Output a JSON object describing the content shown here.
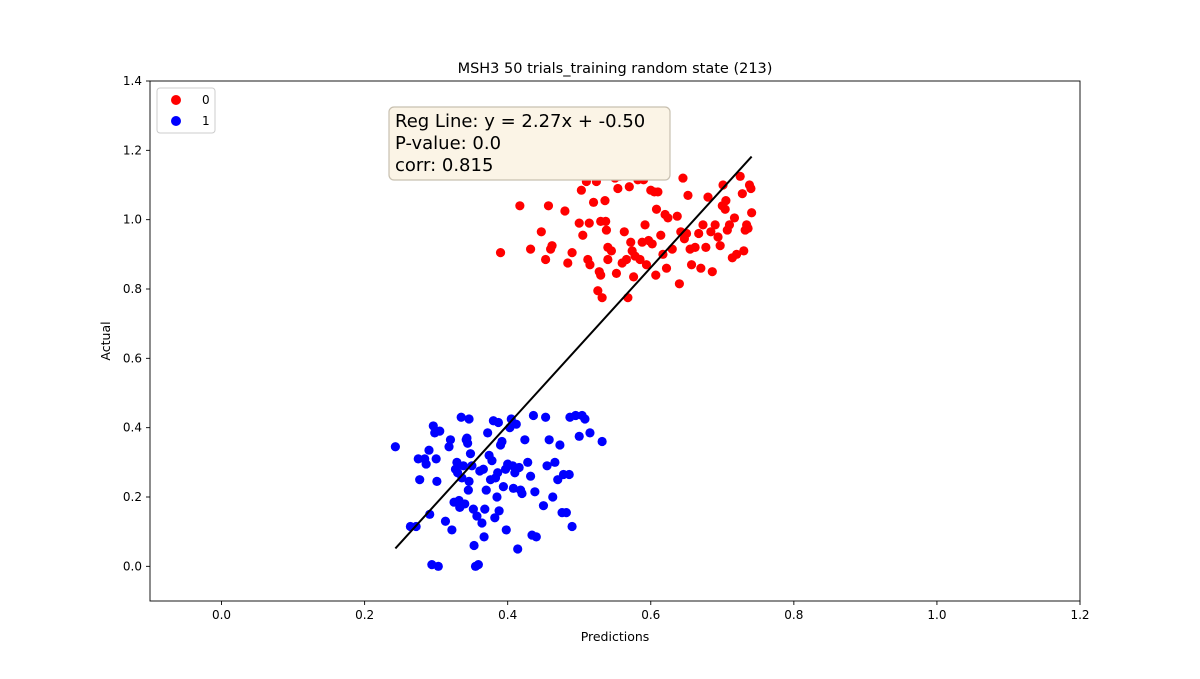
{
  "chart_data": {
    "type": "scatter",
    "title": "MSH3 50 trials_training random state (213)",
    "xlabel": "Predictions",
    "ylabel": "Actual",
    "xlim": [
      -0.1,
      1.2
    ],
    "ylim": [
      -0.1,
      1.4
    ],
    "xticks": [
      "0.0",
      "0.2",
      "0.4",
      "0.6",
      "0.8",
      "1.0",
      "1.2"
    ],
    "xtick_values": [
      0.0,
      0.2,
      0.4,
      0.6,
      0.8,
      1.0,
      1.2
    ],
    "yticks": [
      "0.0",
      "0.2",
      "0.4",
      "0.6",
      "0.8",
      "1.0",
      "1.2",
      "1.4"
    ],
    "ytick_values": [
      0.0,
      0.2,
      0.4,
      0.6,
      0.8,
      1.0,
      1.2,
      1.4
    ],
    "grid": false,
    "legend_position": "top-left",
    "annotation": [
      "Reg Line: y = 2.27x + -0.50",
      "P-value: 0.0",
      "corr: 0.815"
    ],
    "regression_line": {
      "slope": 2.27,
      "intercept": -0.5,
      "x_range": [
        0.243,
        0.741
      ],
      "color": "#000000"
    },
    "series": [
      {
        "name": "0",
        "color": "#ff0000",
        "points": [
          [
            0.39,
            0.905
          ],
          [
            0.417,
            1.04
          ],
          [
            0.432,
            0.915
          ],
          [
            0.447,
            0.965
          ],
          [
            0.453,
            0.885
          ],
          [
            0.457,
            1.04
          ],
          [
            0.46,
            0.915
          ],
          [
            0.462,
            0.925
          ],
          [
            0.48,
            1.025
          ],
          [
            0.484,
            0.875
          ],
          [
            0.49,
            0.905
          ],
          [
            0.5,
            0.99
          ],
          [
            0.503,
            1.085
          ],
          [
            0.505,
            0.955
          ],
          [
            0.51,
            1.11
          ],
          [
            0.512,
            0.885
          ],
          [
            0.514,
            0.99
          ],
          [
            0.515,
            0.87
          ],
          [
            0.52,
            1.05
          ],
          [
            0.524,
            1.11
          ],
          [
            0.526,
            0.795
          ],
          [
            0.528,
            0.85
          ],
          [
            0.53,
            0.84
          ],
          [
            0.532,
            0.775
          ],
          [
            0.53,
            0.995
          ],
          [
            0.536,
            1.055
          ],
          [
            0.537,
            0.995
          ],
          [
            0.538,
            0.97
          ],
          [
            0.54,
            0.92
          ],
          [
            0.54,
            0.885
          ],
          [
            0.545,
            0.91
          ],
          [
            0.55,
            1.12
          ],
          [
            0.552,
            0.845
          ],
          [
            0.554,
            1.09
          ],
          [
            0.557,
            1.125
          ],
          [
            0.56,
            0.875
          ],
          [
            0.563,
            0.965
          ],
          [
            0.566,
            0.885
          ],
          [
            0.568,
            0.775
          ],
          [
            0.57,
            1.095
          ],
          [
            0.572,
            0.935
          ],
          [
            0.574,
            0.91
          ],
          [
            0.576,
            0.835
          ],
          [
            0.578,
            0.895
          ],
          [
            0.582,
            1.115
          ],
          [
            0.585,
            0.885
          ],
          [
            0.588,
            0.935
          ],
          [
            0.59,
            1.115
          ],
          [
            0.592,
            0.985
          ],
          [
            0.594,
            0.87
          ],
          [
            0.597,
            0.94
          ],
          [
            0.6,
            1.085
          ],
          [
            0.602,
            0.93
          ],
          [
            0.605,
            1.08
          ],
          [
            0.607,
            0.84
          ],
          [
            0.608,
            1.03
          ],
          [
            0.61,
            1.08
          ],
          [
            0.614,
            0.955
          ],
          [
            0.617,
            0.9
          ],
          [
            0.62,
            1.015
          ],
          [
            0.622,
            0.86
          ],
          [
            0.624,
            1.005
          ],
          [
            0.63,
            0.915
          ],
          [
            0.637,
            1.01
          ],
          [
            0.64,
            0.815
          ],
          [
            0.642,
            0.965
          ],
          [
            0.645,
            1.12
          ],
          [
            0.647,
            0.945
          ],
          [
            0.65,
            0.96
          ],
          [
            0.652,
            1.07
          ],
          [
            0.655,
            0.915
          ],
          [
            0.657,
            0.87
          ],
          [
            0.662,
            0.92
          ],
          [
            0.667,
            0.96
          ],
          [
            0.67,
            0.86
          ],
          [
            0.673,
            0.985
          ],
          [
            0.677,
            0.92
          ],
          [
            0.68,
            1.065
          ],
          [
            0.684,
            0.965
          ],
          [
            0.686,
            0.85
          ],
          [
            0.69,
            0.985
          ],
          [
            0.694,
            0.95
          ],
          [
            0.697,
            0.925
          ],
          [
            0.7,
            1.04
          ],
          [
            0.701,
            1.1
          ],
          [
            0.704,
            1.03
          ],
          [
            0.705,
            1.055
          ],
          [
            0.707,
            0.97
          ],
          [
            0.71,
            0.985
          ],
          [
            0.714,
            0.89
          ],
          [
            0.717,
            1.005
          ],
          [
            0.72,
            0.9
          ],
          [
            0.725,
            1.125
          ],
          [
            0.728,
            1.075
          ],
          [
            0.73,
            0.91
          ],
          [
            0.732,
            0.97
          ],
          [
            0.734,
            0.985
          ],
          [
            0.736,
            0.975
          ],
          [
            0.738,
            1.1
          ],
          [
            0.74,
            1.09
          ],
          [
            0.741,
            1.02
          ]
        ]
      },
      {
        "name": "1",
        "color": "#0000ff",
        "points": [
          [
            0.243,
            0.345
          ],
          [
            0.264,
            0.115
          ],
          [
            0.272,
            0.115
          ],
          [
            0.275,
            0.31
          ],
          [
            0.277,
            0.25
          ],
          [
            0.284,
            0.31
          ],
          [
            0.286,
            0.295
          ],
          [
            0.29,
            0.335
          ],
          [
            0.291,
            0.15
          ],
          [
            0.294,
            0.005
          ],
          [
            0.296,
            0.405
          ],
          [
            0.298,
            0.385
          ],
          [
            0.3,
            0.31
          ],
          [
            0.301,
            0.245
          ],
          [
            0.303,
            0.0
          ],
          [
            0.305,
            0.39
          ],
          [
            0.313,
            0.13
          ],
          [
            0.318,
            0.345
          ],
          [
            0.32,
            0.365
          ],
          [
            0.322,
            0.105
          ],
          [
            0.325,
            0.185
          ],
          [
            0.327,
            0.28
          ],
          [
            0.329,
            0.3
          ],
          [
            0.33,
            0.27
          ],
          [
            0.332,
            0.19
          ],
          [
            0.333,
            0.17
          ],
          [
            0.335,
            0.43
          ],
          [
            0.336,
            0.255
          ],
          [
            0.338,
            0.29
          ],
          [
            0.34,
            0.18
          ],
          [
            0.342,
            0.365
          ],
          [
            0.343,
            0.37
          ],
          [
            0.344,
            0.355
          ],
          [
            0.345,
            0.22
          ],
          [
            0.346,
            0.245
          ],
          [
            0.346,
            0.425
          ],
          [
            0.348,
            0.325
          ],
          [
            0.35,
            0.29
          ],
          [
            0.352,
            0.165
          ],
          [
            0.353,
            0.06
          ],
          [
            0.355,
            0.0
          ],
          [
            0.357,
            0.145
          ],
          [
            0.359,
            0.005
          ],
          [
            0.361,
            0.275
          ],
          [
            0.364,
            0.125
          ],
          [
            0.366,
            0.28
          ],
          [
            0.367,
            0.085
          ],
          [
            0.368,
            0.165
          ],
          [
            0.37,
            0.22
          ],
          [
            0.372,
            0.385
          ],
          [
            0.374,
            0.32
          ],
          [
            0.376,
            0.25
          ],
          [
            0.378,
            0.305
          ],
          [
            0.38,
            0.42
          ],
          [
            0.382,
            0.14
          ],
          [
            0.383,
            0.255
          ],
          [
            0.385,
            0.2
          ],
          [
            0.386,
            0.27
          ],
          [
            0.387,
            0.415
          ],
          [
            0.388,
            0.16
          ],
          [
            0.39,
            0.35
          ],
          [
            0.392,
            0.36
          ],
          [
            0.394,
            0.23
          ],
          [
            0.397,
            0.28
          ],
          [
            0.398,
            0.105
          ],
          [
            0.4,
            0.295
          ],
          [
            0.403,
            0.4
          ],
          [
            0.405,
            0.425
          ],
          [
            0.407,
            0.29
          ],
          [
            0.408,
            0.225
          ],
          [
            0.41,
            0.27
          ],
          [
            0.412,
            0.41
          ],
          [
            0.414,
            0.05
          ],
          [
            0.416,
            0.285
          ],
          [
            0.418,
            0.22
          ],
          [
            0.42,
            0.21
          ],
          [
            0.424,
            0.365
          ],
          [
            0.428,
            0.3
          ],
          [
            0.432,
            0.26
          ],
          [
            0.434,
            0.09
          ],
          [
            0.436,
            0.435
          ],
          [
            0.438,
            0.215
          ],
          [
            0.44,
            0.085
          ],
          [
            0.45,
            0.175
          ],
          [
            0.453,
            0.43
          ],
          [
            0.455,
            0.29
          ],
          [
            0.458,
            0.365
          ],
          [
            0.463,
            0.2
          ],
          [
            0.466,
            0.3
          ],
          [
            0.47,
            0.25
          ],
          [
            0.473,
            0.35
          ],
          [
            0.476,
            0.155
          ],
          [
            0.478,
            0.265
          ],
          [
            0.482,
            0.155
          ],
          [
            0.486,
            0.265
          ],
          [
            0.487,
            0.43
          ],
          [
            0.49,
            0.115
          ],
          [
            0.495,
            0.435
          ],
          [
            0.5,
            0.375
          ],
          [
            0.504,
            0.435
          ],
          [
            0.508,
            0.425
          ],
          [
            0.515,
            0.385
          ],
          [
            0.532,
            0.36
          ]
        ]
      }
    ]
  }
}
